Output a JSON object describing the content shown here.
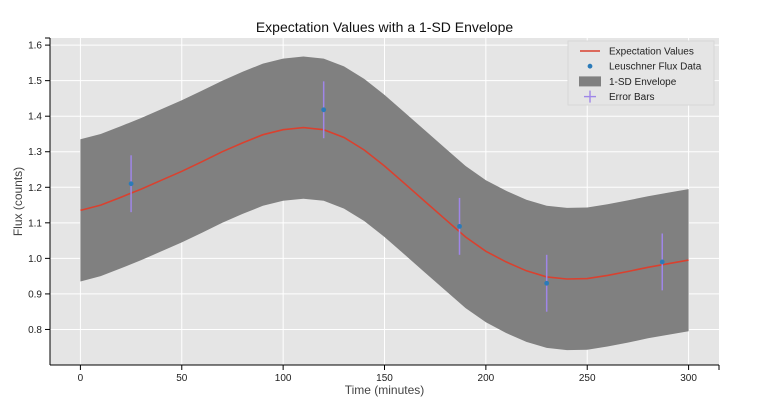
{
  "chart_data": {
    "type": "line",
    "title": "Expectation Values with a 1-SD Envelope",
    "xlabel": "Time (minutes)",
    "ylabel": "Flux (counts)",
    "xlim": [
      -15,
      315
    ],
    "ylim": [
      0.7,
      1.62
    ],
    "x_ticks": [
      0,
      50,
      100,
      150,
      200,
      250,
      300
    ],
    "y_ticks": [
      0.8,
      0.9,
      1.0,
      1.1,
      1.2,
      1.3,
      1.4,
      1.5,
      1.6
    ],
    "x_tick_labels": [
      "0",
      "50",
      "100",
      "150",
      "200",
      "250",
      "300"
    ],
    "y_tick_labels": [
      "0.8",
      "0.9",
      "1.0",
      "1.1",
      "1.2",
      "1.3",
      "1.4",
      "1.5",
      "1.6"
    ],
    "grid": true,
    "legend_position": "top-right",
    "series": [
      {
        "name": "Expectation Values",
        "kind": "line",
        "color": "#d9412f",
        "x": [
          0,
          10,
          20,
          30,
          40,
          50,
          60,
          70,
          80,
          90,
          100,
          110,
          120,
          130,
          140,
          150,
          160,
          170,
          180,
          190,
          200,
          210,
          220,
          230,
          240,
          250,
          260,
          270,
          280,
          290,
          300
        ],
        "y": [
          1.135,
          1.15,
          1.172,
          1.195,
          1.22,
          1.245,
          1.272,
          1.3,
          1.325,
          1.348,
          1.362,
          1.368,
          1.362,
          1.34,
          1.305,
          1.26,
          1.21,
          1.16,
          1.11,
          1.06,
          1.02,
          0.99,
          0.965,
          0.948,
          0.942,
          0.943,
          0.952,
          0.963,
          0.975,
          0.985,
          0.995
        ]
      },
      {
        "name": "Leuschner Flux Data",
        "kind": "scatter",
        "color": "#2b7bb9",
        "x": [
          25,
          120,
          187,
          230,
          287
        ],
        "y": [
          1.21,
          1.418,
          1.09,
          0.93,
          0.99
        ]
      },
      {
        "name": "1-SD Envelope",
        "kind": "band",
        "color": "#808080",
        "x": [
          0,
          10,
          20,
          30,
          40,
          50,
          60,
          70,
          80,
          90,
          100,
          110,
          120,
          130,
          140,
          150,
          160,
          170,
          180,
          190,
          200,
          210,
          220,
          230,
          240,
          250,
          260,
          270,
          280,
          290,
          300
        ],
        "upper": [
          1.335,
          1.35,
          1.372,
          1.395,
          1.42,
          1.445,
          1.472,
          1.5,
          1.525,
          1.548,
          1.562,
          1.568,
          1.562,
          1.54,
          1.505,
          1.46,
          1.41,
          1.36,
          1.31,
          1.26,
          1.22,
          1.19,
          1.165,
          1.148,
          1.142,
          1.143,
          1.152,
          1.163,
          1.175,
          1.185,
          1.195
        ],
        "lower": [
          0.935,
          0.95,
          0.972,
          0.995,
          1.02,
          1.045,
          1.072,
          1.1,
          1.125,
          1.148,
          1.162,
          1.168,
          1.162,
          1.14,
          1.105,
          1.06,
          1.01,
          0.96,
          0.91,
          0.86,
          0.82,
          0.79,
          0.765,
          0.748,
          0.742,
          0.743,
          0.752,
          0.763,
          0.775,
          0.785,
          0.795
        ]
      },
      {
        "name": "Error Bars",
        "kind": "errorbar",
        "color": "#9f86e8",
        "x": [
          25,
          120,
          187,
          230,
          287
        ],
        "y": [
          1.21,
          1.418,
          1.09,
          0.93,
          0.99
        ],
        "yerr": [
          0.08,
          0.08,
          0.08,
          0.08,
          0.08
        ]
      }
    ]
  }
}
